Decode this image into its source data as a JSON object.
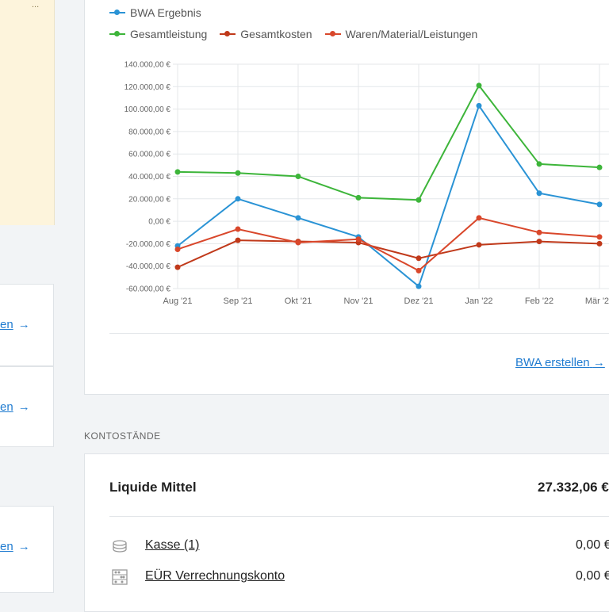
{
  "sidebar": {
    "note_corner": "...",
    "links": [
      {
        "label": "en"
      },
      {
        "label": "en"
      },
      {
        "label": "en"
      }
    ]
  },
  "chart_data": {
    "type": "line",
    "categories": [
      "Aug '21",
      "Sep '21",
      "Okt '21",
      "Nov '21",
      "Dez '21",
      "Jan '22",
      "Feb '22",
      "Mär '22"
    ],
    "ylim": [
      -60000,
      140000
    ],
    "yticks": [
      -60000,
      -40000,
      -20000,
      0,
      20000,
      40000,
      60000,
      80000,
      100000,
      120000,
      140000
    ],
    "ytick_labels": [
      "-60.000,00 €",
      "-40.000,00 €",
      "-20.000,00 €",
      "0,00 €",
      "20.000,00 €",
      "40.000,00 €",
      "60.000,00 €",
      "80.000,00 €",
      "100.000,00 €",
      "120.000,00 €",
      "140.000,00 €"
    ],
    "grid": true,
    "legend_position": "top-left",
    "series": [
      {
        "name": "BWA Ergebnis",
        "color": "#2a93d5",
        "values": [
          -22000,
          20000,
          3000,
          -14000,
          -58000,
          103000,
          25000,
          15000
        ]
      },
      {
        "name": "Gesamtleistung",
        "color": "#3db53a",
        "values": [
          44000,
          43000,
          40000,
          21000,
          19000,
          121000,
          51000,
          48000
        ]
      },
      {
        "name": "Gesamtkosten",
        "color": "#c0391a",
        "values": [
          -41000,
          -17000,
          -18000,
          -19000,
          -33000,
          -21000,
          -18000,
          -20000
        ]
      },
      {
        "name": "Waren/Material/Leistungen",
        "color": "#d9472b",
        "values": [
          -25000,
          -7000,
          -19000,
          -16000,
          -44000,
          3000,
          -10000,
          -14000
        ]
      }
    ]
  },
  "chart_footer": {
    "create_link": "BWA erstellen"
  },
  "accounts": {
    "section_title": "KONTOSTÄNDE",
    "liquid_label": "Liquide Mittel",
    "liquid_value": "27.332,06 €",
    "items": [
      {
        "name": "Kasse (1)",
        "value": "0,00 €",
        "icon": "coins-icon"
      },
      {
        "name": "EÜR Verrechnungskonto",
        "value": "0,00 €",
        "icon": "abacus-icon"
      }
    ]
  }
}
